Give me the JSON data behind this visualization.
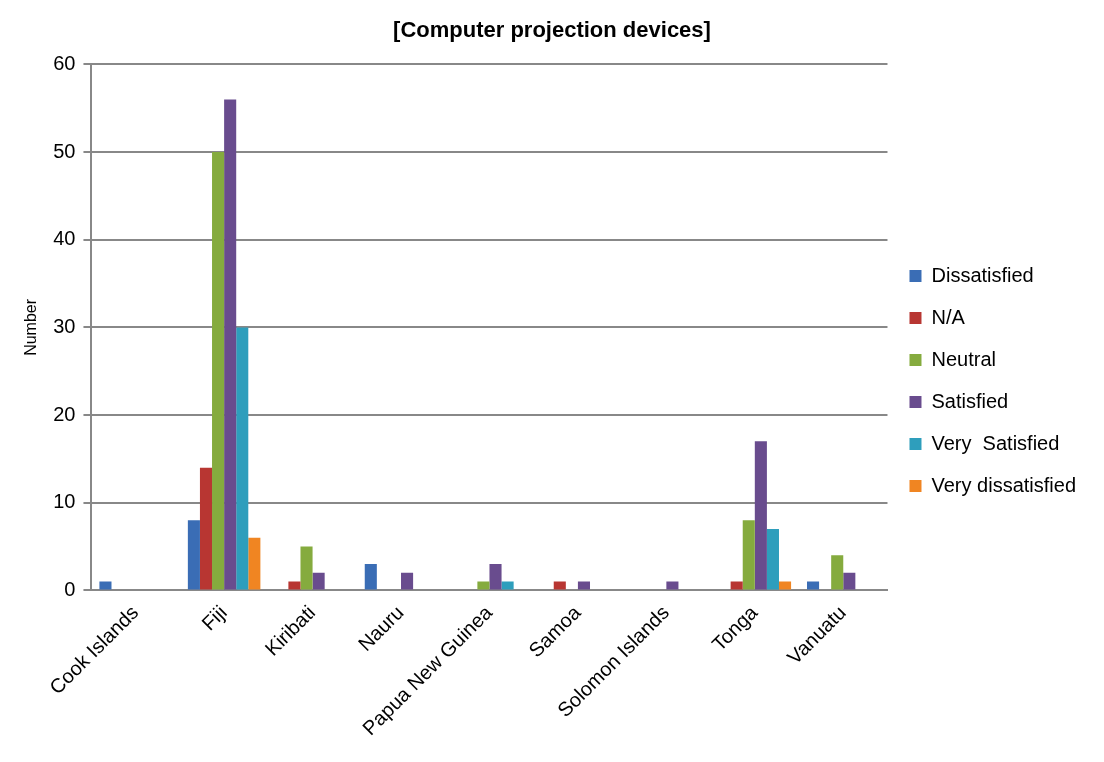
{
  "chart_data": {
    "type": "bar",
    "title": "[Computer projection devices]",
    "ylabel": "Number",
    "categories": [
      "Cook Islands",
      "Fiji",
      "Kiribati",
      "Nauru",
      "Papua New Guinea",
      "Samoa",
      "Solomon Islands",
      "Tonga",
      "Vanuatu"
    ],
    "series": [
      {
        "name": "Dissatisfied",
        "color": "#3a6db5",
        "values": [
          1,
          8,
          0,
          3,
          0,
          0,
          0,
          0,
          1
        ]
      },
      {
        "name": "N/A",
        "color": "#b83632",
        "values": [
          0,
          14,
          1,
          0,
          0,
          1,
          0,
          1,
          0
        ]
      },
      {
        "name": "Neutral",
        "color": "#85ab3e",
        "values": [
          0,
          50,
          5,
          0,
          1,
          0,
          0,
          8,
          4
        ]
      },
      {
        "name": "Satisfied",
        "color": "#694c8e",
        "values": [
          0,
          56,
          2,
          2,
          3,
          1,
          1,
          17,
          2
        ]
      },
      {
        "name": "Very  Satisfied",
        "color": "#2e9ebc",
        "values": [
          0,
          30,
          0,
          0,
          1,
          0,
          0,
          7,
          0
        ]
      },
      {
        "name": "Very dissatisfied",
        "color": "#f08522",
        "values": [
          0,
          6,
          0,
          0,
          0,
          0,
          0,
          1,
          0
        ]
      }
    ],
    "ylim": [
      0,
      60
    ],
    "yticks": [
      0,
      10,
      20,
      30,
      40,
      50,
      60
    ],
    "grid": "y",
    "legend": "right"
  }
}
